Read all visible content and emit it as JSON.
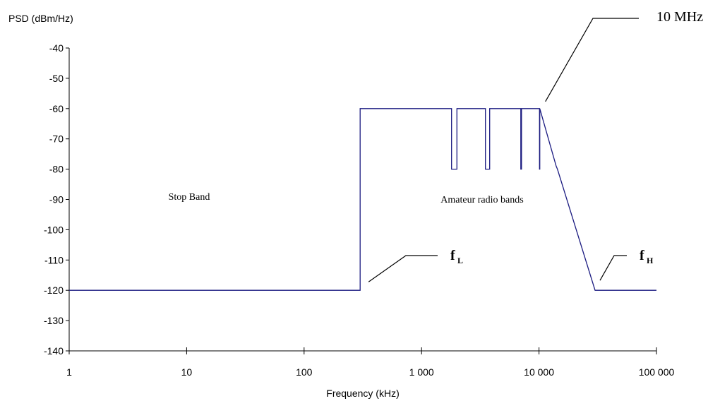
{
  "chart_data": {
    "type": "line",
    "title": "",
    "xlabel": "Frequency (kHz)",
    "ylabel": "PSD (dBm/Hz)",
    "x_scale": "log",
    "xlim": [
      1,
      100000
    ],
    "ylim": [
      -140,
      -40
    ],
    "x_ticks": [
      1,
      10,
      100,
      1000,
      10000,
      100000
    ],
    "x_tick_labels": [
      "1",
      "10",
      "100",
      "1 000",
      "10 000",
      "100 000"
    ],
    "y_ticks": [
      -140,
      -130,
      -120,
      -110,
      -100,
      -90,
      -80,
      -70,
      -60,
      -50,
      -40
    ],
    "y_tick_labels": [
      "-140",
      "-130",
      "-120",
      "-110",
      "-100",
      "-90",
      "-80",
      "-70",
      "-60",
      "-50",
      "-40"
    ],
    "grid": false,
    "legend": "none",
    "series": [
      {
        "color": "#1a1a80",
        "points": [
          [
            1,
            -120
          ],
          [
            300,
            -120
          ],
          [
            300,
            -60
          ],
          [
            1800,
            -60
          ],
          [
            1800,
            -80
          ],
          [
            2000,
            -80
          ],
          [
            2000,
            -60
          ],
          [
            3500,
            -60
          ],
          [
            3500,
            -80
          ],
          [
            3800,
            -80
          ],
          [
            3800,
            -60
          ],
          [
            7000,
            -60
          ],
          [
            7000,
            -80
          ],
          [
            7100,
            -80
          ],
          [
            7100,
            -60
          ],
          [
            10100,
            -60
          ],
          [
            10100,
            -80
          ],
          [
            10150,
            -80
          ],
          [
            10150,
            -60
          ],
          [
            14000,
            -79
          ],
          [
            14350,
            -80
          ],
          [
            30000,
            -120
          ],
          [
            100000,
            -120
          ]
        ]
      }
    ],
    "annotations": [
      {
        "text": "Stop Band",
        "x": 20,
        "y": -88
      },
      {
        "text": "Amateur radio bands",
        "x": 5500,
        "y": -88
      },
      {
        "text": "10 MHz",
        "x": 10150,
        "y": -60
      },
      {
        "text": "f",
        "subscript": "L",
        "x": 300,
        "y": -120
      },
      {
        "text": "f",
        "subscript": "H",
        "x": 30000,
        "y": -120
      }
    ]
  }
}
